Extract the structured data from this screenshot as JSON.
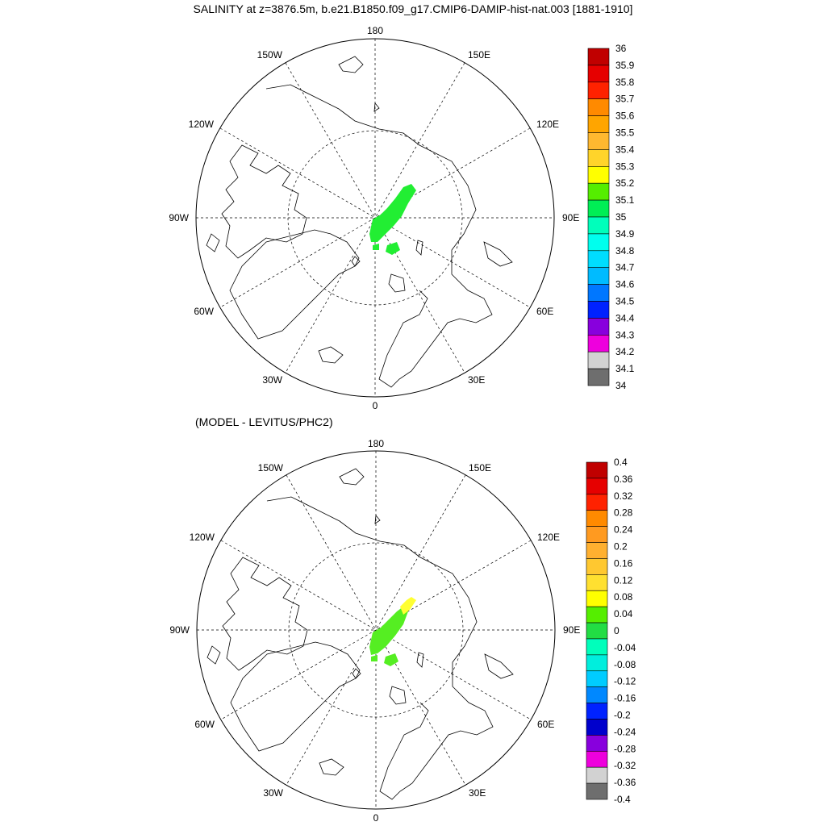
{
  "title": "SALINITY at z=3876.5m, b.e21.B1850.f09_g17.CMIP6-DAMIP-hist-nat.003 [1881-1910]",
  "subtitle": "(MODEL - LEVITUS/PHC2)",
  "longitude_labels": {
    "top": "180",
    "bottom": "0",
    "left": "90W",
    "right": "90E",
    "upper_left": "150W",
    "upper_right": "150E",
    "mid_upper_left": "120W",
    "mid_upper_right": "120E",
    "mid_lower_left": "60W",
    "mid_lower_right": "60E",
    "lower_left": "30W",
    "lower_right": "30E"
  },
  "map_top": {
    "colorbar_labels": [
      "36",
      "35.9",
      "35.8",
      "35.7",
      "35.6",
      "35.5",
      "35.4",
      "35.3",
      "35.2",
      "35.1",
      "35",
      "34.9",
      "34.8",
      "34.7",
      "34.6",
      "34.5",
      "34.4",
      "34.3",
      "34.2",
      "34.1",
      "34"
    ],
    "colorbar_colors": [
      "#c00000",
      "#e60000",
      "#ff2200",
      "#ff8a00",
      "#ffa500",
      "#ffb830",
      "#ffd42a",
      "#ffff00",
      "#55ee00",
      "#00ee55",
      "#00ffbb",
      "#00ffee",
      "#00ddff",
      "#00bbff",
      "#0077ff",
      "#0022ff",
      "#8800dd",
      "#ee00dd",
      "#d2d2d2",
      "#6e6e6e"
    ],
    "data_color": "#22ee33"
  },
  "map_bottom": {
    "colorbar_labels": [
      "0.4",
      "0.36",
      "0.32",
      "0.28",
      "0.24",
      "0.2",
      "0.16",
      "0.12",
      "0.08",
      "0.04",
      "0",
      "-0.04",
      "-0.08",
      "-0.12",
      "-0.16",
      "-0.2",
      "-0.24",
      "-0.28",
      "-0.32",
      "-0.36",
      "-0.4"
    ],
    "colorbar_colors": [
      "#c00000",
      "#e60000",
      "#ff2200",
      "#ff8a00",
      "#ff9a20",
      "#ffb030",
      "#ffc830",
      "#ffe030",
      "#ffff00",
      "#55ee00",
      "#22dd44",
      "#00ffbb",
      "#00eedd",
      "#00ccff",
      "#0088ff",
      "#0022ff",
      "#0000cc",
      "#8800dd",
      "#ee00dd",
      "#d2d2d2",
      "#6e6e6e"
    ],
    "data_color": "#55ee22",
    "positive_color": "#ffff33"
  }
}
